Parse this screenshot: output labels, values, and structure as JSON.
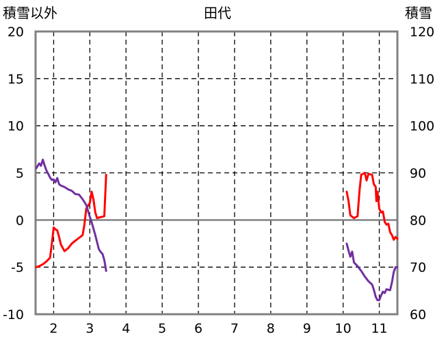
{
  "chart_data": {
    "type": "line",
    "title": "田代",
    "left_axis_label": "積雪以外",
    "right_axis_label": "積雪",
    "x_ticks": [
      "2",
      "3",
      "4",
      "5",
      "6",
      "7",
      "8",
      "9",
      "10",
      "11"
    ],
    "xlim": [
      1.5,
      11.5
    ],
    "left_ylim": [
      -10,
      20
    ],
    "left_ticks": [
      "-10",
      "-5",
      "0",
      "5",
      "10",
      "15",
      "20"
    ],
    "right_ylim": [
      60,
      120
    ],
    "right_ticks": [
      "60",
      "70",
      "80",
      "90",
      "100",
      "110",
      "120"
    ],
    "grid": true,
    "series": [
      {
        "color": "#ff0000",
        "axis": "left",
        "segments": [
          [
            [
              1.52,
              -5.0
            ],
            [
              1.6,
              -4.9
            ],
            [
              1.7,
              -4.7
            ],
            [
              1.8,
              -4.4
            ],
            [
              1.9,
              -4.0
            ],
            [
              1.95,
              -2.5
            ],
            [
              2.0,
              -0.8
            ],
            [
              2.05,
              -1.0
            ],
            [
              2.1,
              -1.1
            ],
            [
              2.15,
              -1.8
            ],
            [
              2.2,
              -2.6
            ],
            [
              2.3,
              -3.3
            ],
            [
              2.4,
              -3.0
            ],
            [
              2.5,
              -2.5
            ],
            [
              2.6,
              -2.2
            ],
            [
              2.7,
              -1.9
            ],
            [
              2.8,
              -1.6
            ],
            [
              2.85,
              -0.5
            ],
            [
              2.9,
              1.2
            ],
            [
              3.0,
              1.8
            ],
            [
              3.05,
              3.0
            ],
            [
              3.1,
              2.2
            ],
            [
              3.15,
              0.8
            ],
            [
              3.2,
              0.2
            ],
            [
              3.3,
              0.3
            ],
            [
              3.4,
              0.4
            ],
            [
              3.45,
              4.8
            ]
          ],
          [
            [
              10.1,
              3.0
            ],
            [
              10.15,
              2.0
            ],
            [
              10.2,
              0.5
            ],
            [
              10.3,
              0.2
            ],
            [
              10.4,
              0.4
            ],
            [
              10.45,
              3.0
            ],
            [
              10.5,
              4.8
            ],
            [
              10.6,
              5.0
            ],
            [
              10.65,
              4.2
            ],
            [
              10.7,
              4.9
            ],
            [
              10.8,
              4.8
            ],
            [
              10.85,
              3.8
            ],
            [
              10.9,
              3.5
            ],
            [
              10.92,
              2.0
            ],
            [
              10.95,
              3.0
            ],
            [
              11.0,
              1.2
            ],
            [
              11.05,
              0.8
            ],
            [
              11.1,
              0.9
            ],
            [
              11.15,
              -0.2
            ],
            [
              11.2,
              -0.5
            ],
            [
              11.25,
              -0.4
            ],
            [
              11.3,
              -1.3
            ],
            [
              11.35,
              -1.6
            ],
            [
              11.4,
              -2.1
            ],
            [
              11.45,
              -1.8
            ],
            [
              11.5,
              -2.0
            ]
          ]
        ]
      },
      {
        "color": "#7030a0",
        "axis": "right",
        "segments": [
          [
            [
              1.52,
              91.0
            ],
            [
              1.6,
              92.0
            ],
            [
              1.65,
              91.5
            ],
            [
              1.7,
              92.8
            ],
            [
              1.75,
              91.6
            ],
            [
              1.8,
              90.5
            ],
            [
              1.85,
              89.8
            ],
            [
              1.9,
              89.0
            ],
            [
              1.95,
              88.5
            ],
            [
              2.0,
              88.6
            ],
            [
              2.05,
              88.0
            ],
            [
              2.1,
              88.9
            ],
            [
              2.15,
              87.6
            ],
            [
              2.2,
              87.3
            ],
            [
              2.3,
              87.0
            ],
            [
              2.4,
              86.5
            ],
            [
              2.5,
              86.2
            ],
            [
              2.6,
              85.5
            ],
            [
              2.7,
              85.4
            ],
            [
              2.8,
              84.4
            ],
            [
              2.9,
              83.2
            ],
            [
              3.0,
              80.7
            ],
            [
              3.05,
              79.5
            ],
            [
              3.1,
              78.2
            ],
            [
              3.15,
              76.8
            ],
            [
              3.2,
              75.3
            ],
            [
              3.25,
              73.8
            ],
            [
              3.3,
              73.2
            ],
            [
              3.35,
              72.8
            ],
            [
              3.4,
              71.5
            ],
            [
              3.45,
              69.2
            ]
          ],
          [
            [
              10.1,
              75.0
            ],
            [
              10.15,
              73.5
            ],
            [
              10.2,
              72.2
            ],
            [
              10.25,
              73.3
            ],
            [
              10.3,
              71.0
            ],
            [
              10.4,
              70.2
            ],
            [
              10.5,
              69.2
            ],
            [
              10.6,
              68.0
            ],
            [
              10.7,
              67.0
            ],
            [
              10.8,
              66.3
            ],
            [
              10.85,
              65.2
            ],
            [
              10.9,
              63.7
            ],
            [
              10.95,
              63.0
            ],
            [
              11.0,
              63.0
            ],
            [
              11.05,
              64.0
            ],
            [
              11.1,
              64.8
            ],
            [
              11.15,
              64.5
            ],
            [
              11.2,
              65.3
            ],
            [
              11.3,
              65.1
            ],
            [
              11.35,
              66.8
            ],
            [
              11.4,
              69.0
            ],
            [
              11.45,
              70.0
            ],
            [
              11.5,
              70.0
            ]
          ]
        ]
      }
    ]
  }
}
